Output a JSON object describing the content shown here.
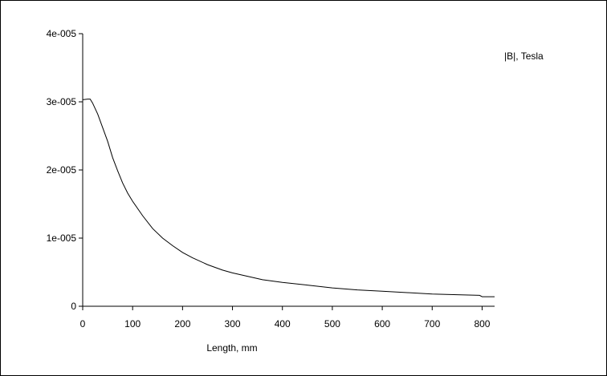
{
  "chart_data": {
    "type": "line",
    "xlabel": "Length, mm",
    "ylabel": "",
    "xlim": [
      0,
      825
    ],
    "ylim": [
      0,
      4e-05
    ],
    "x_ticks": [
      0,
      100,
      200,
      300,
      400,
      500,
      600,
      700,
      800
    ],
    "x_tick_labels": [
      "0",
      "100",
      "200",
      "300",
      "400",
      "500",
      "600",
      "700",
      "800"
    ],
    "y_ticks": [
      0,
      1e-05,
      2e-05,
      3e-05,
      4e-05
    ],
    "y_tick_labels": [
      "0",
      "1e-005",
      "2e-005",
      "3e-005",
      "4e-005"
    ],
    "grid": false,
    "legend_position": "top-right",
    "series": [
      {
        "name": "|B|, Tesla",
        "color": "#000000",
        "x": [
          0,
          10,
          15,
          20,
          30,
          40,
          50,
          60,
          70,
          80,
          90,
          100,
          120,
          140,
          160,
          180,
          200,
          220,
          250,
          280,
          300,
          330,
          360,
          400,
          450,
          500,
          550,
          600,
          650,
          700,
          750,
          795,
          800,
          825
        ],
        "y": [
          3.03e-05,
          3.04e-05,
          3.04e-05,
          2.98e-05,
          2.82e-05,
          2.62e-05,
          2.42e-05,
          2.18e-05,
          1.99e-05,
          1.81e-05,
          1.66e-05,
          1.54e-05,
          1.33e-05,
          1.14e-05,
          1e-05,
          8.9e-06,
          7.9e-06,
          7.1e-06,
          6.1e-06,
          5.3e-06,
          4.9e-06,
          4.4e-06,
          3.9e-06,
          3.5e-06,
          3.1e-06,
          2.7e-06,
          2.4e-06,
          2.2e-06,
          2e-06,
          1.8e-06,
          1.7e-06,
          1.6e-06,
          1.4e-06,
          1.4e-06
        ]
      }
    ]
  }
}
